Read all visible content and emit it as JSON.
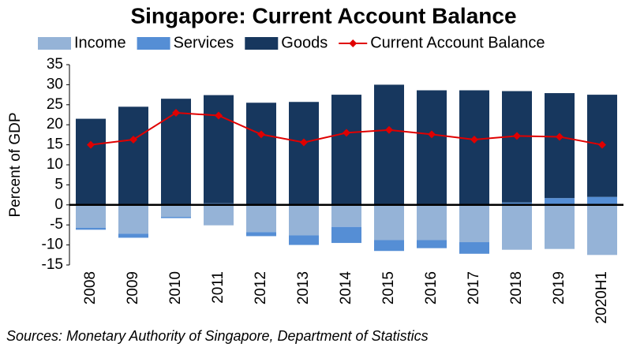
{
  "chart_data": {
    "type": "bar",
    "title": "Singapore: Current Account Balance",
    "y_label": "Percent of GDP",
    "source": "Sources: Monetary Authority of Singapore, Department of Statistics",
    "categories": [
      "2008",
      "2009",
      "2010",
      "2011",
      "2012",
      "2013",
      "2014",
      "2015",
      "2016",
      "2017",
      "2018",
      "2019",
      "2020H1"
    ],
    "series": [
      {
        "name": "Income",
        "type": "bar",
        "color": "#95b3d7",
        "values": [
          -5.7,
          -7.2,
          -3.0,
          -5.1,
          -6.8,
          -7.6,
          -5.5,
          -8.8,
          -8.8,
          -9.3,
          -11.2,
          -11.0,
          -12.5
        ]
      },
      {
        "name": "Services",
        "type": "bar",
        "color": "#558ed5",
        "values": [
          -0.5,
          -1.0,
          -0.3,
          0.4,
          -1.0,
          -2.4,
          -4.0,
          -2.7,
          -2.0,
          -2.9,
          0.6,
          1.7,
          2.0
        ]
      },
      {
        "name": "Goods",
        "type": "bar",
        "color": "#17375e",
        "values": [
          21.5,
          24.5,
          26.5,
          27.0,
          25.5,
          25.7,
          27.5,
          30.0,
          28.6,
          28.6,
          27.8,
          26.2,
          25.5
        ]
      },
      {
        "name": "Current Account Balance",
        "type": "line",
        "color": "#e00000",
        "values": [
          15.0,
          16.3,
          23.0,
          22.3,
          17.6,
          15.6,
          18.0,
          18.7,
          17.6,
          16.3,
          17.2,
          17.0,
          15.0
        ]
      }
    ],
    "stacked": true,
    "ylim": [
      -15,
      35
    ],
    "yticks": [
      -15,
      -10,
      -5,
      0,
      5,
      10,
      15,
      20,
      25,
      30,
      35
    ],
    "grid": false,
    "legend": "top"
  }
}
